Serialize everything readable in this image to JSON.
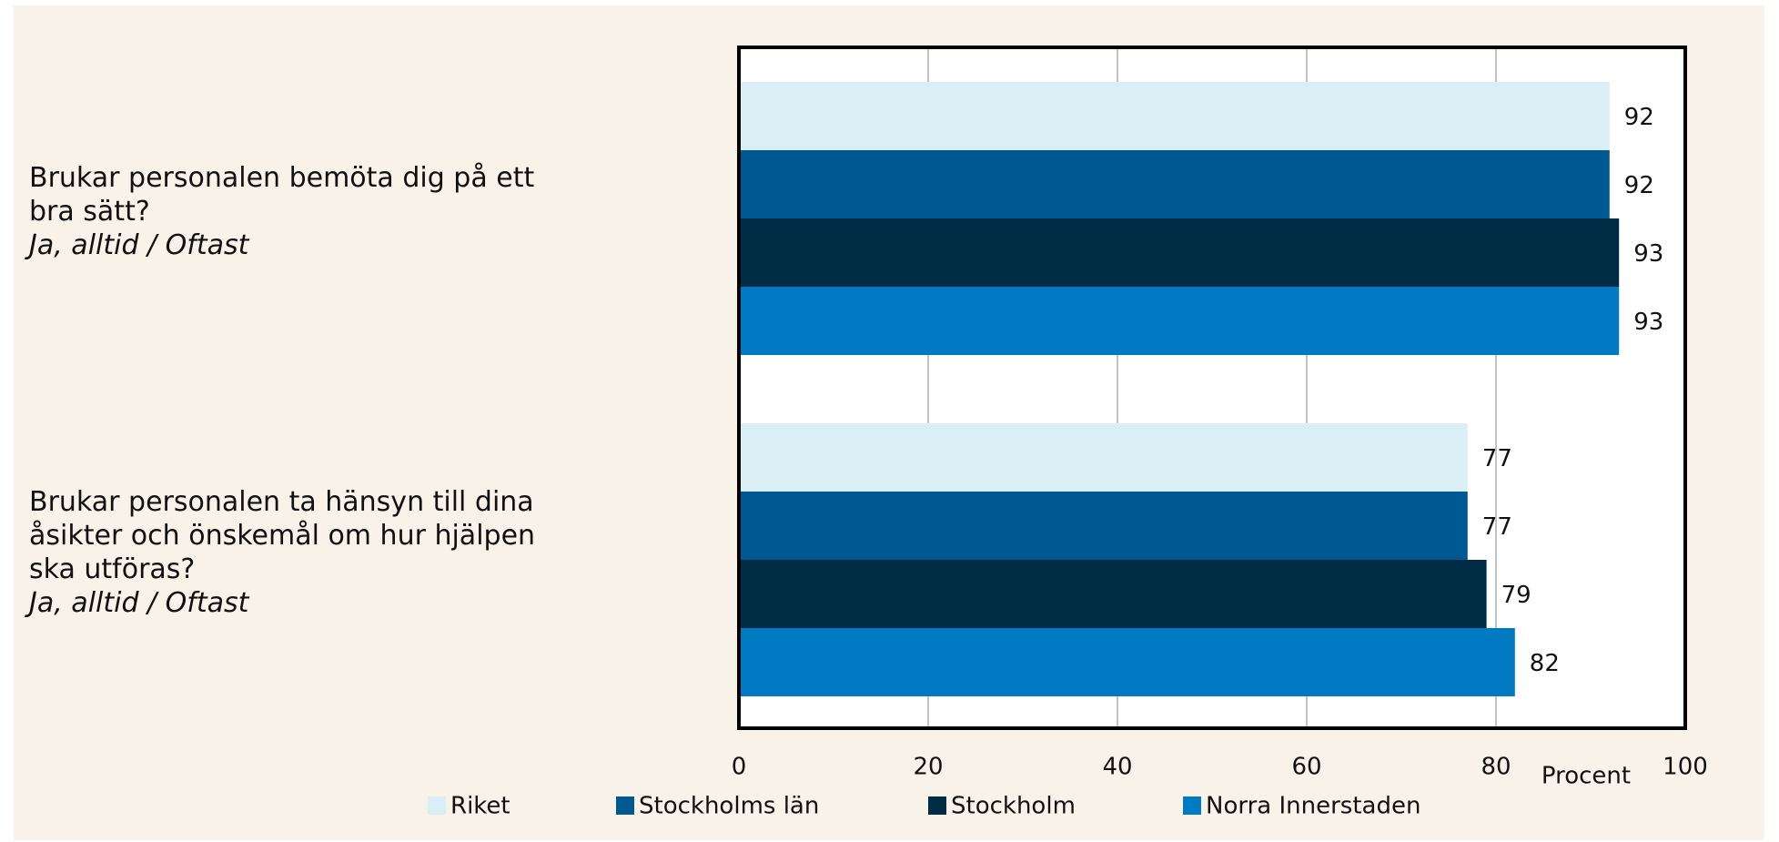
{
  "chart_data": {
    "type": "bar",
    "orientation": "horizontal",
    "categories": [
      "Brukar personalen bemöta dig på ett bra sätt?",
      "Brukar personalen ta hänsyn till dina åsikter och önskemål om hur hjälpen ska utföras?"
    ],
    "category_notes": [
      "Ja, alltid / Oftast",
      "Ja, alltid / Oftast"
    ],
    "series": [
      {
        "name": "Riket",
        "color": "#daeef6",
        "values": [
          92,
          77
        ]
      },
      {
        "name": "Stockholms län",
        "color": "#005893",
        "values": [
          92,
          77
        ]
      },
      {
        "name": "Stockholm",
        "color": "#002b45",
        "values": [
          93,
          79
        ]
      },
      {
        "name": "Norra Innerstaden",
        "color": "#007ac3",
        "values": [
          93,
          82
        ]
      }
    ],
    "xlabel": "Procent",
    "xlim": [
      0,
      100
    ],
    "xticks": [
      0,
      20,
      40,
      60,
      80,
      100
    ],
    "grid": true,
    "legend": "bottom"
  }
}
